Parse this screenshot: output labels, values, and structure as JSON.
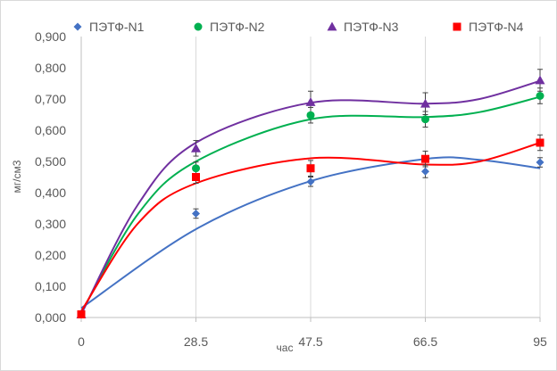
{
  "chart_data": {
    "type": "scatter",
    "title": "",
    "xlabel": "час",
    "ylabel": "мг/см3",
    "x_ticks": [
      "0",
      "28.5",
      "47.5",
      "66.5",
      "95"
    ],
    "y_ticks": [
      "0,000",
      "0,100",
      "0,200",
      "0,300",
      "0,400",
      "0,500",
      "0,600",
      "0,700",
      "0,800",
      "0,900"
    ],
    "xlim": [
      0,
      95
    ],
    "ylim": [
      0,
      0.9
    ],
    "grid": "vertical",
    "legend_position": "top",
    "trendline": "polynomial",
    "x": [
      0,
      28.5,
      47.5,
      66.5,
      95
    ],
    "series": [
      {
        "name": "ПЭТФ-N1",
        "marker": "diamond",
        "color": "#4472c4",
        "values": [
          0.01,
          0.333,
          0.435,
          0.468,
          0.497
        ],
        "error": [
          0.005,
          0.015,
          0.015,
          0.02,
          0.015
        ],
        "fit": [
          [
            0,
            0.03
          ],
          [
            28.5,
            0.283
          ],
          [
            47.5,
            0.437
          ],
          [
            66.5,
            0.508
          ],
          [
            80,
            0.505
          ],
          [
            95,
            0.478
          ]
        ]
      },
      {
        "name": "ПЭТФ-N2",
        "marker": "circle",
        "color": "#00b050",
        "values": [
          0.01,
          0.478,
          0.648,
          0.635,
          0.71
        ],
        "error": [
          0.005,
          0.02,
          0.025,
          0.025,
          0.025
        ],
        "fit": [
          [
            0,
            0.015
          ],
          [
            14,
            0.33
          ],
          [
            28.5,
            0.5
          ],
          [
            47.5,
            0.635
          ],
          [
            66.5,
            0.642
          ],
          [
            80,
            0.658
          ],
          [
            95,
            0.707
          ]
        ]
      },
      {
        "name": "ПЭТФ-N3",
        "marker": "triangle",
        "color": "#7030a0",
        "values": [
          0.01,
          0.542,
          0.69,
          0.685,
          0.76
        ],
        "error": [
          0.005,
          0.025,
          0.035,
          0.035,
          0.035
        ],
        "fit": [
          [
            0,
            0.01
          ],
          [
            14,
            0.36
          ],
          [
            28.5,
            0.56
          ],
          [
            47.5,
            0.688
          ],
          [
            66.5,
            0.685
          ],
          [
            80,
            0.7
          ],
          [
            95,
            0.758
          ]
        ]
      },
      {
        "name": "ПЭТФ-N4",
        "marker": "square",
        "color": "#ff0000",
        "values": [
          0.01,
          0.45,
          0.478,
          0.508,
          0.56
        ],
        "error": [
          0.005,
          0.02,
          0.025,
          0.025,
          0.025
        ],
        "fit": [
          [
            0,
            0.02
          ],
          [
            14,
            0.3
          ],
          [
            28.5,
            0.43
          ],
          [
            47.5,
            0.51
          ],
          [
            66.5,
            0.49
          ],
          [
            80,
            0.5
          ],
          [
            95,
            0.56
          ]
        ]
      }
    ]
  }
}
